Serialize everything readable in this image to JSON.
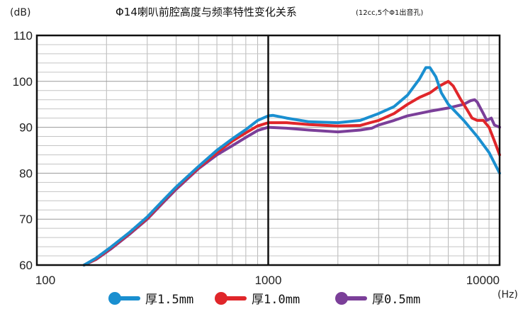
{
  "chart_data": {
    "type": "line",
    "title": "Φ14喇叭前腔高度与频率特性变化关系",
    "subtitle": "(12cc,5个Φ1出音孔)",
    "ylabel": "(dB)",
    "xunit": "(Hz)",
    "xscale": "log",
    "xlim": [
      100,
      10000
    ],
    "ylim": [
      60,
      110
    ],
    "yticks": [
      "60",
      "70",
      "80",
      "90",
      "100",
      "110"
    ],
    "xticks": [
      {
        "value": 100,
        "label": "100"
      },
      {
        "value": 1000,
        "label": "1000"
      },
      {
        "value": 10000,
        "label": "10000"
      }
    ],
    "grid": true,
    "legend_position": "bottom",
    "series": [
      {
        "name": "厚1.5mm",
        "color": "#1a8fd0",
        "points": [
          [
            160,
            60
          ],
          [
            180,
            61.5
          ],
          [
            210,
            64
          ],
          [
            250,
            67
          ],
          [
            300,
            70.5
          ],
          [
            350,
            74
          ],
          [
            400,
            77
          ],
          [
            500,
            81.5
          ],
          [
            600,
            85
          ],
          [
            700,
            87.5
          ],
          [
            800,
            89.5
          ],
          [
            900,
            91.5
          ],
          [
            1000,
            92.5
          ],
          [
            1050,
            92.6
          ],
          [
            1200,
            92
          ],
          [
            1500,
            91.2
          ],
          [
            2000,
            91
          ],
          [
            2500,
            91.5
          ],
          [
            3000,
            93
          ],
          [
            3500,
            94.5
          ],
          [
            4000,
            97
          ],
          [
            4500,
            100.5
          ],
          [
            4800,
            103
          ],
          [
            5000,
            103
          ],
          [
            5300,
            101
          ],
          [
            5600,
            97.5
          ],
          [
            6000,
            95
          ],
          [
            7000,
            91.5
          ],
          [
            8000,
            88
          ],
          [
            9000,
            84.5
          ],
          [
            10000,
            80
          ]
        ]
      },
      {
        "name": "厚1.0mm",
        "color": "#e0262a",
        "points": [
          [
            160,
            60
          ],
          [
            180,
            61.3
          ],
          [
            210,
            63.8
          ],
          [
            250,
            66.8
          ],
          [
            300,
            70.2
          ],
          [
            350,
            73.8
          ],
          [
            400,
            76.8
          ],
          [
            500,
            81.2
          ],
          [
            600,
            84.5
          ],
          [
            700,
            87
          ],
          [
            800,
            88.8
          ],
          [
            900,
            90.3
          ],
          [
            1000,
            91
          ],
          [
            1200,
            91
          ],
          [
            1500,
            90.6
          ],
          [
            2000,
            90.3
          ],
          [
            2500,
            90.4
          ],
          [
            2800,
            91.1
          ],
          [
            3000,
            91.5
          ],
          [
            3500,
            93
          ],
          [
            4000,
            95
          ],
          [
            4500,
            96.5
          ],
          [
            5000,
            97.5
          ],
          [
            5500,
            99
          ],
          [
            6000,
            100
          ],
          [
            6300,
            99
          ],
          [
            6800,
            96
          ],
          [
            7200,
            94
          ],
          [
            7600,
            92
          ],
          [
            8000,
            91.5
          ],
          [
            8500,
            91.5
          ],
          [
            9000,
            90
          ],
          [
            9500,
            87
          ],
          [
            10000,
            84
          ]
        ]
      },
      {
        "name": "厚0.5mm",
        "color": "#7b3f99",
        "points": [
          [
            160,
            60
          ],
          [
            180,
            61.2
          ],
          [
            210,
            63.6
          ],
          [
            250,
            66.6
          ],
          [
            300,
            70
          ],
          [
            350,
            73.5
          ],
          [
            400,
            76.5
          ],
          [
            500,
            81
          ],
          [
            600,
            84
          ],
          [
            700,
            86
          ],
          [
            800,
            87.8
          ],
          [
            900,
            89.3
          ],
          [
            1000,
            90
          ],
          [
            1200,
            89.8
          ],
          [
            1500,
            89.4
          ],
          [
            2000,
            89
          ],
          [
            2500,
            89.4
          ],
          [
            2800,
            89.8
          ],
          [
            3000,
            90.5
          ],
          [
            3500,
            91.5
          ],
          [
            4000,
            92.5
          ],
          [
            5000,
            93.5
          ],
          [
            6000,
            94.2
          ],
          [
            7000,
            95
          ],
          [
            7500,
            95.8
          ],
          [
            7800,
            96
          ],
          [
            8000,
            95.5
          ],
          [
            8500,
            93
          ],
          [
            8800,
            91.5
          ],
          [
            9200,
            92
          ],
          [
            9500,
            90.5
          ],
          [
            10000,
            90
          ]
        ]
      }
    ]
  }
}
